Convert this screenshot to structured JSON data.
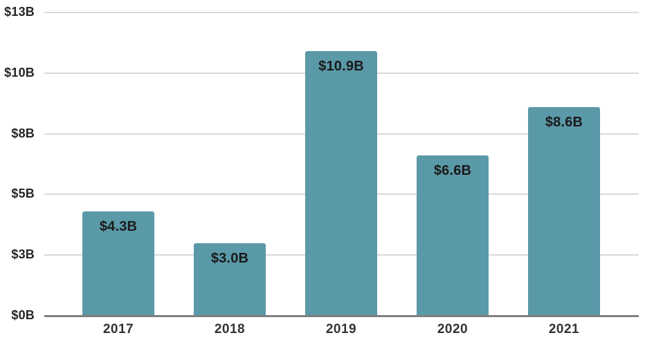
{
  "chart_data": {
    "type": "bar",
    "title": "",
    "xlabel": "",
    "ylabel": "",
    "categories": [
      "2017",
      "2018",
      "2019",
      "2020",
      "2021"
    ],
    "values": [
      4.3,
      3.0,
      10.9,
      6.6,
      8.6
    ],
    "bar_labels": [
      "$4.3B",
      "$3.0B",
      "$10.9B",
      "$6.6B",
      "$8.6B"
    ],
    "ylim": [
      0,
      12.5
    ],
    "yticks": [
      {
        "value": 0,
        "label": "$0B"
      },
      {
        "value": 2.5,
        "label": "$3B"
      },
      {
        "value": 5,
        "label": "$5B"
      },
      {
        "value": 7.5,
        "label": "$8B"
      },
      {
        "value": 10,
        "label": "$10B"
      },
      {
        "value": 12.5,
        "label": "$13B"
      }
    ],
    "grid": true,
    "legend": false,
    "colors": {
      "bar": "#5a99a8",
      "bar_label_text": "#1a1a1a",
      "gridline": "#d9d9d9",
      "axis_line": "#7f7f7f",
      "y_tick_text": "#262626",
      "x_tick_text": "#333333",
      "background": "#ffffff"
    }
  }
}
